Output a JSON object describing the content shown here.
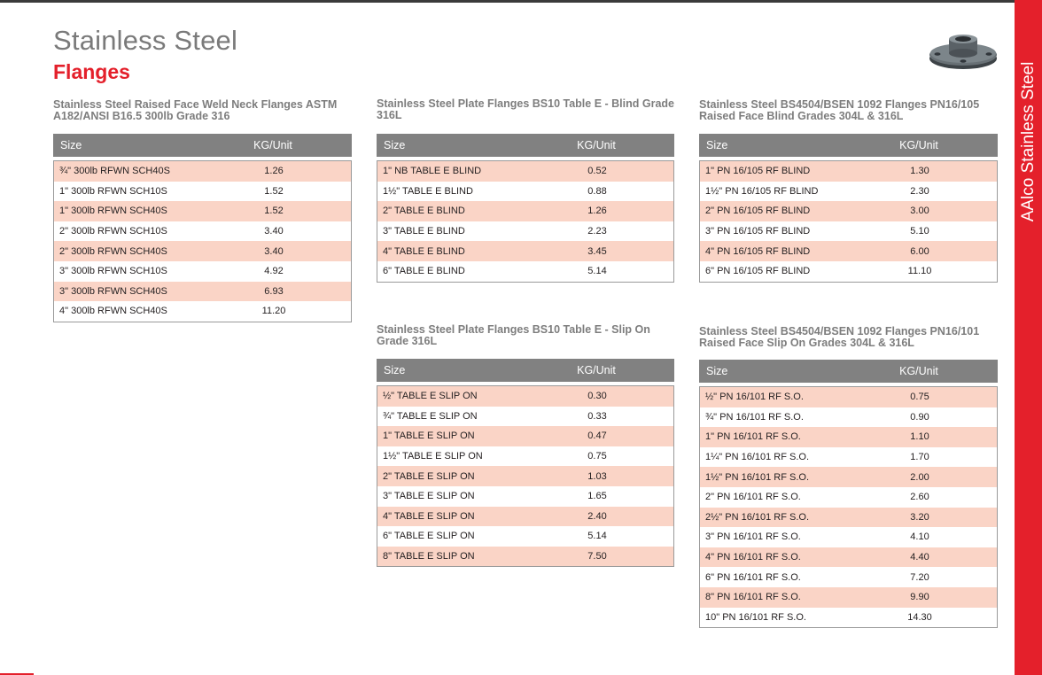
{
  "page": {
    "title": "Stainless Steel",
    "subtitle": "Flanges",
    "side_tab": "AAlco Stainless Steel"
  },
  "colors": {
    "accent": "#e4202b",
    "header": "#818181",
    "stripe": "#fad4c6",
    "title": "#7a7a7a"
  },
  "icons": {
    "product": "flange-icon"
  },
  "tables": [
    {
      "title": "Stainless Steel Raised Face Weld Neck Flanges ASTM A182/ANSI B16.5 300lb Grade 316",
      "columns": [
        "Size",
        "KG/Unit"
      ],
      "rows": [
        [
          "¾\" 300lb RFWN SCH40S",
          "1.26"
        ],
        [
          "1\" 300lb RFWN SCH10S",
          "1.52"
        ],
        [
          "1\" 300lb RFWN SCH40S",
          "1.52"
        ],
        [
          "2\" 300lb RFWN SCH10S",
          "3.40"
        ],
        [
          "2\" 300lb RFWN SCH40S",
          "3.40"
        ],
        [
          "3\" 300lb RFWN SCH10S",
          "4.92"
        ],
        [
          "3\" 300lb RFWN SCH40S",
          "6.93"
        ],
        [
          "4\" 300lb RFWN SCH40S",
          "11.20"
        ]
      ]
    },
    {
      "title": "Stainless Steel Plate Flanges BS10 Table E - Blind Grade 316L",
      "columns": [
        "Size",
        "KG/Unit"
      ],
      "rows": [
        [
          "1\" NB TABLE E BLIND",
          "0.52"
        ],
        [
          "1½\" TABLE E BLIND",
          "0.88"
        ],
        [
          "2\" TABLE E BLIND",
          "1.26"
        ],
        [
          "3\" TABLE E BLIND",
          "2.23"
        ],
        [
          "4\" TABLE E BLIND",
          "3.45"
        ],
        [
          "6\" TABLE E BLIND",
          "5.14"
        ]
      ]
    },
    {
      "title": "Stainless Steel BS4504/BSEN 1092 Flanges PN16/105 Raised Face Blind Grades 304L & 316L",
      "columns": [
        "Size",
        "KG/Unit"
      ],
      "rows": [
        [
          "1\" PN 16/105 RF BLIND",
          "1.30"
        ],
        [
          "1½\" PN 16/105 RF BLIND",
          "2.30"
        ],
        [
          "2\" PN 16/105 RF BLIND",
          "3.00"
        ],
        [
          "3\" PN 16/105 RF BLIND",
          "5.10"
        ],
        [
          "4\" PN 16/105 RF BLIND",
          "6.00"
        ],
        [
          "6\" PN 16/105 RF BLIND",
          "11.10"
        ]
      ]
    },
    {
      "title": "Stainless Steel Plate Flanges BS10 Table E - Slip On Grade 316L",
      "columns": [
        "Size",
        "KG/Unit"
      ],
      "rows": [
        [
          "½\" TABLE E SLIP ON",
          "0.30"
        ],
        [
          "¾\" TABLE E SLIP ON",
          "0.33"
        ],
        [
          "1\" TABLE E SLIP ON",
          "0.47"
        ],
        [
          "1½\" TABLE E SLIP ON",
          "0.75"
        ],
        [
          "2\" TABLE E SLIP ON",
          "1.03"
        ],
        [
          "3\" TABLE E SLIP ON",
          "1.65"
        ],
        [
          "4\" TABLE E SLIP ON",
          "2.40"
        ],
        [
          "6\" TABLE E SLIP ON",
          "5.14"
        ],
        [
          "8\" TABLE E SLIP ON",
          "7.50"
        ]
      ]
    },
    {
      "title": "Stainless Steel BS4504/BSEN 1092 Flanges PN16/101 Raised Face Slip On Grades 304L & 316L",
      "columns": [
        "Size",
        "KG/Unit"
      ],
      "rows": [
        [
          "½\" PN 16/101 RF S.O.",
          "0.75"
        ],
        [
          "¾\" PN 16/101 RF S.O.",
          "0.90"
        ],
        [
          "1\" PN 16/101 RF S.O.",
          "1.10"
        ],
        [
          "1¼\" PN 16/101 RF S.O.",
          "1.70"
        ],
        [
          "1½\" PN 16/101 RF S.O.",
          "2.00"
        ],
        [
          "2\" PN 16/101 RF S.O.",
          "2.60"
        ],
        [
          "2½\" PN 16/101 RF S.O.",
          "3.20"
        ],
        [
          "3\" PN 16/101 RF S.O.",
          "4.10"
        ],
        [
          "4\" PN 16/101 RF S.O.",
          "4.40"
        ],
        [
          "6\" PN 16/101 RF S.O.",
          "7.20"
        ],
        [
          "8\" PN 16/101 RF S.O.",
          "9.90"
        ],
        [
          "10\" PN 16/101 RF S.O.",
          "14.30"
        ]
      ]
    }
  ]
}
